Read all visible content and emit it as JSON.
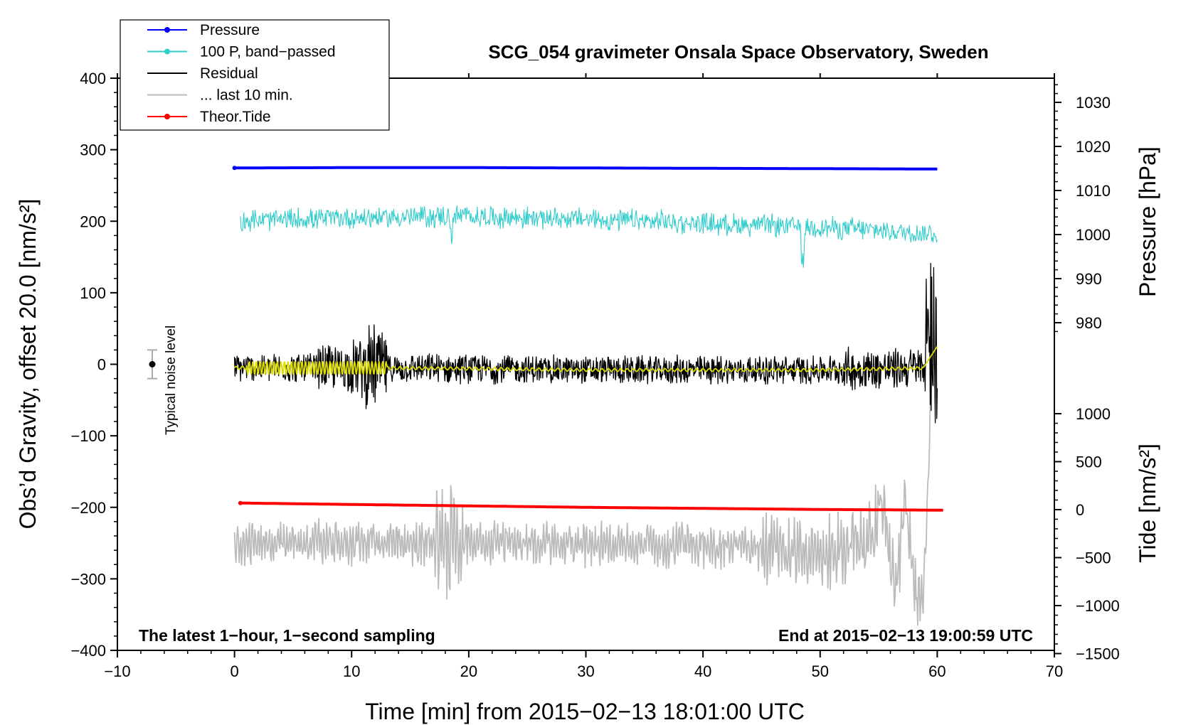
{
  "chart_data": {
    "type": "line",
    "title": "SCG_054 gravimeter Onsala Space Observatory, Sweden",
    "xlabel": "Time [min] from 2015−02−13 18:01:00 UTC",
    "ylabel_left": "Obs’d Gravity, offset 20.0 [nm/s²]",
    "ylabel_right_top": "Pressure [hPa]",
    "ylabel_right_bottom": "Tide [nm/s²]",
    "xlim": [
      -10,
      70
    ],
    "ylim_left": [
      -400,
      400
    ],
    "x_ticks": [
      "−10",
      "0",
      "10",
      "20",
      "30",
      "40",
      "50",
      "60",
      "70"
    ],
    "y_ticks_left": [
      "400",
      "300",
      "200",
      "100",
      "0",
      "−100",
      "−200",
      "−300",
      "−400"
    ],
    "pressure_ticks": [
      "1030",
      "1020",
      "1010",
      "1000",
      "990",
      "980"
    ],
    "tide_ticks": [
      "1000",
      "500",
      "0",
      "−500",
      "−1000",
      "−1500"
    ],
    "noise_label": "Typical noise level",
    "noise_value": 20,
    "footer_left": "The latest 1−hour, 1−second sampling",
    "footer_right": "End at 2015−02−13 19:00:59 UTC",
    "legend": [
      {
        "label": "Pressure",
        "color": "#0000ff",
        "marker": true
      },
      {
        "label": "100 P, band−passed",
        "color": "#33cccc",
        "marker": true
      },
      {
        "label": "Residual",
        "color": "#000000",
        "marker": false
      },
      {
        "label": "... last 10 min.",
        "color": "#bbbbbb",
        "marker": false
      },
      {
        "label": "Theor.Tide",
        "color": "#ff0000",
        "marker": true
      }
    ],
    "series": [
      {
        "name": "Pressure",
        "color": "#0000ff",
        "x": [
          0,
          10,
          20,
          30,
          40,
          50,
          60
        ],
        "y": [
          274.5,
          275,
          275,
          274.5,
          274,
          273.5,
          273
        ]
      },
      {
        "name": "100 P, band−passed",
        "color": "#33cccc",
        "x": [
          0,
          10,
          20,
          30,
          40,
          50,
          60
        ],
        "y": [
          200,
          205,
          207,
          203,
          197,
          192,
          182
        ]
      },
      {
        "name": "Residual",
        "color": "#000000",
        "x": [
          0,
          10,
          20,
          30,
          40,
          50,
          60
        ],
        "y": [
          -5,
          -5,
          -6,
          -8,
          -8,
          -8,
          40
        ]
      },
      {
        "name": "Theor.Tide",
        "color": "#ff0000",
        "x": [
          0.5,
          10,
          20,
          30,
          40,
          50,
          60.5
        ],
        "y": [
          -194,
          -196,
          -198,
          -200,
          -201.5,
          -203,
          -204
        ]
      },
      {
        "name": "... last 10 min.",
        "color": "#bbbbbb",
        "x": [
          0,
          10,
          20,
          30,
          40,
          50,
          60
        ],
        "y": [
          -250,
          -250,
          -250,
          -250,
          -255,
          -265,
          -220
        ]
      }
    ]
  }
}
